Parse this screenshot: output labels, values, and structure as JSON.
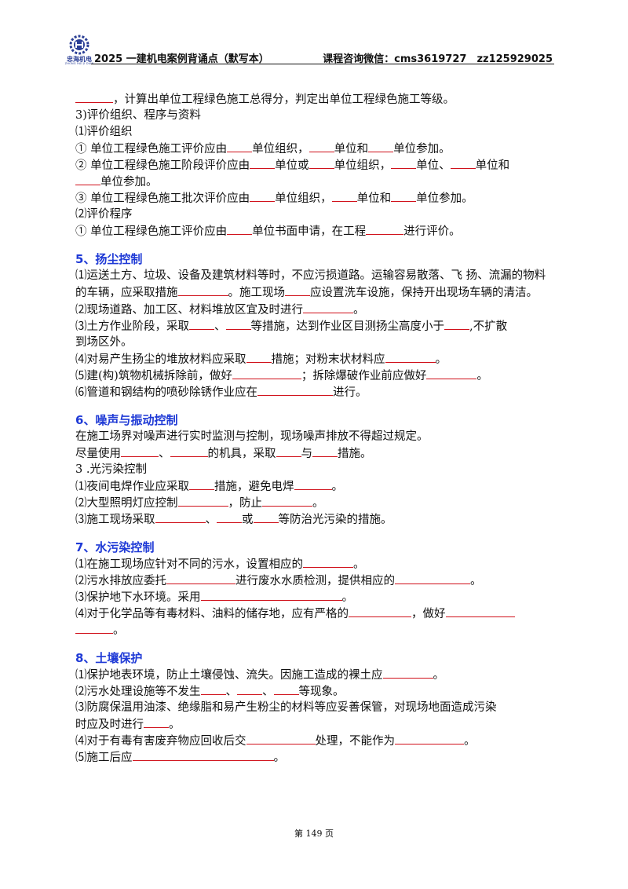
{
  "header": {
    "logo_name": "忠海机电",
    "logo_pinyin": "ZHONG HAI JI DIAN",
    "title": "2025 一建机电案例背诵点（默写本）",
    "contact": "课程咨询微信：cms3619727　zz125929025"
  },
  "body": {
    "l01": "，计算出单位工程绿色施工总得分，判定出单位工程绿色施工等级。",
    "l02": "3)评价组织、程序与资料",
    "l03": "⑴评价组织",
    "l04": [
      "① 单位工程绿色施工评价应由",
      "单位组织，",
      "单位和",
      "单位参加。"
    ],
    "l05": [
      "② 单位工程绿色施工阶段评价应由",
      "单位或",
      "单位组织，",
      "单位、",
      "单位和"
    ],
    "l06": "单位参加。",
    "l07": [
      "③ 单位工程绿色施工批次评价应由",
      "单位组织，",
      "单位和",
      "单位参加。"
    ],
    "l08": "⑵评价程序",
    "l09": [
      "① 单位工程绿色施工评价应由",
      "单位书面申请，在工程",
      "进行评价。"
    ],
    "s5": "5、扬尘控制",
    "l10": "⑴运送土方、垃圾、设备及建筑材料等时，不应污损道路。运输容易散落、飞 扬、流漏的物料的车辆，应采取措施",
    "l10b": "。施工现场",
    "l10c": "应设置洗车设施，保持开出现场车辆的清洁。",
    "l11": [
      "⑵现场道路、加工区、材料堆放区宜及时进行",
      "。"
    ],
    "l12": [
      "⑶土方作业阶段，采取",
      "、",
      "等措施，达到作业区目测扬尘高度小于",
      ",不扩散"
    ],
    "l13": "到场区外。",
    "l14": [
      "⑷对易产生扬尘的堆放材料应采取",
      "措施；对粉末状材料应",
      "。"
    ],
    "l15": [
      "⑸建(构)筑物机械拆除前，做好",
      "；拆除爆破作业前应做好",
      "。"
    ],
    "l16": [
      "⑹管道和钢结构的喷砂除锈作业应在",
      "进行。"
    ],
    "s6": "6、噪声与振动控制",
    "l17": "在施工场界对噪声进行实时监测与控制，现场噪声排放不得超过规定。",
    "l18": [
      "尽量使用",
      "、",
      "的机具，采取",
      "与",
      "措施。"
    ],
    "l19": "3 .光污染控制",
    "l20": [
      "⑴夜间电焊作业应采取",
      "措施，避免电焊",
      "。"
    ],
    "l21": [
      "⑵大型照明灯应控制",
      "，防止",
      "。"
    ],
    "l22": [
      "⑶施工现场采取",
      "、",
      "或",
      "等防治光污染的措施。"
    ],
    "s7": "7、水污染控制",
    "l23": [
      "⑴在施工现场应针对不同的污水，设置相应的",
      "。"
    ],
    "l24": [
      "⑵污水排放应委托",
      "进行废水水质检测，提供相应的",
      "。"
    ],
    "l25": [
      "⑶保护地下水环境。采用",
      "。"
    ],
    "l26": [
      "⑷对于化学品等有毒材料、油料的储存地，应有严格的",
      "，做好"
    ],
    "l27": "。",
    "s8": "8、土壤保护",
    "l28": [
      "⑴保护地表环境，防止土壤侵蚀、流失。因施工造成的裸土应",
      "。"
    ],
    "l29": [
      "⑵污水处理设施等不发生",
      "、",
      "、",
      "等现象。"
    ],
    "l30": "⑶防腐保温用油漆、绝缘脂和易产生粉尘的材料等应妥善保管，对现场地面造成污染",
    "l31": [
      "时应及时进行",
      "。"
    ],
    "l32": [
      "⑷对于有毒有害废弃物应回收后交",
      "处理，不能作为",
      "。"
    ],
    "l33": [
      "⑸施工后应",
      "。"
    ]
  },
  "footer": {
    "page": "第 149 页"
  },
  "colors": {
    "heading": "#1f3ad6",
    "blank_line": "#d0101a",
    "logo": "#2b3f96"
  }
}
